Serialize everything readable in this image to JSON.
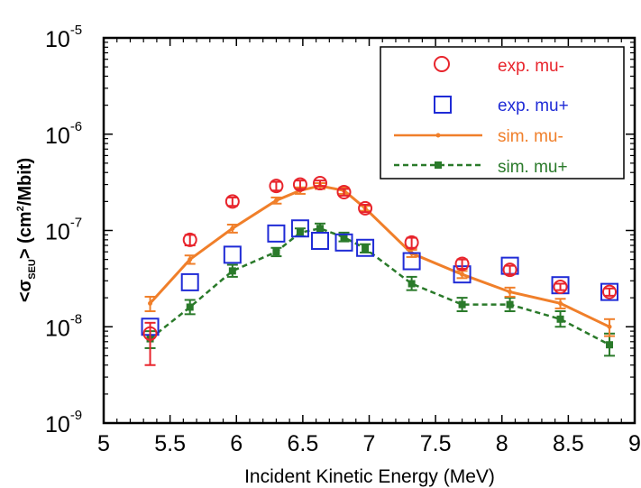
{
  "chart_data": {
    "type": "scatter",
    "xlabel": "Incident Kinetic Energy (MeV)",
    "ylabel": {
      "prefix": "<σ",
      "subscript": "SEU",
      "suffix": "> (cm",
      "superscript": "2",
      "end": "/Mbit)"
    },
    "xlim": [
      5,
      9
    ],
    "ylim": [
      1e-09,
      1e-05
    ],
    "yscale": "log",
    "x_ticks": [
      "5",
      "5.5",
      "6",
      "6.5",
      "7",
      "7.5",
      "8",
      "8.5",
      "9"
    ],
    "y_ticks": [
      {
        "base": "10",
        "exp": "-9"
      },
      {
        "base": "10",
        "exp": "-8"
      },
      {
        "base": "10",
        "exp": "-7"
      },
      {
        "base": "10",
        "exp": "-6"
      },
      {
        "base": "10",
        "exp": "-5"
      }
    ],
    "grid": false,
    "legend_position": "top-right",
    "series": [
      {
        "name": "exp. mu-",
        "style": "open-circle",
        "color": "#e8242c",
        "x": [
          5.35,
          5.65,
          5.97,
          6.3,
          6.48,
          6.63,
          6.81,
          6.97,
          7.32,
          7.7,
          8.06,
          8.44,
          8.81
        ],
        "y": [
          8.5e-09,
          8e-08,
          2e-07,
          2.9e-07,
          3e-07,
          3.1e-07,
          2.5e-07,
          1.7e-07,
          7.5e-08,
          4.5e-08,
          3.9e-08,
          2.6e-08,
          2.3e-08
        ],
        "err_low": [
          4e-09,
          7e-08,
          1.8e-07,
          2.6e-07,
          2.7e-07,
          2.9e-07,
          2.3e-07,
          1.55e-07,
          6.6e-08,
          4e-08,
          3.5e-08,
          2.4e-08,
          2.1e-08
        ],
        "err_high": [
          1.1e-08,
          9e-08,
          2.2e-07,
          3.2e-07,
          3.3e-07,
          3.3e-07,
          2.7e-07,
          1.85e-07,
          8.4e-08,
          5e-08,
          4.3e-08,
          2.8e-08,
          2.5e-08
        ]
      },
      {
        "name": "exp. mu+",
        "style": "open-square",
        "color": "#1f2bd6",
        "x": [
          5.35,
          5.65,
          5.97,
          6.3,
          6.48,
          6.63,
          6.81,
          6.97,
          7.32,
          7.7,
          8.06,
          8.44,
          8.81
        ],
        "y": [
          1e-08,
          2.9e-08,
          5.6e-08,
          9.3e-08,
          1.05e-07,
          7.8e-08,
          7.5e-08,
          6.6e-08,
          4.8e-08,
          3.5e-08,
          4.3e-08,
          2.7e-08,
          2.3e-08
        ]
      },
      {
        "name": "sim. mu-",
        "style": "solid-line",
        "color": "#f07f2a",
        "x": [
          5.35,
          5.65,
          5.97,
          6.3,
          6.48,
          6.63,
          6.81,
          6.97,
          7.32,
          7.7,
          8.06,
          8.44,
          8.81
        ],
        "y": [
          1.75e-08,
          5e-08,
          1.05e-07,
          2.05e-07,
          2.6e-07,
          2.9e-07,
          2.6e-07,
          1.7e-07,
          5.8e-08,
          3.5e-08,
          2.3e-08,
          1.75e-08,
          1e-08
        ],
        "err_low": [
          1.45e-08,
          4.5e-08,
          9.5e-08,
          1.9e-07,
          2.4e-07,
          2.7e-07,
          2.4e-07,
          1.6e-07,
          5.3e-08,
          3.2e-08,
          2.05e-08,
          1.55e-08,
          8e-09
        ],
        "err_high": [
          2.05e-08,
          5.5e-08,
          1.15e-07,
          2.2e-07,
          2.8e-07,
          3.1e-07,
          2.8e-07,
          1.8e-07,
          6.3e-08,
          3.8e-08,
          2.55e-08,
          1.95e-08,
          1.2e-08
        ]
      },
      {
        "name": "sim. mu+",
        "style": "dashed-line-square",
        "color": "#2a7a2a",
        "x": [
          5.35,
          5.65,
          5.97,
          6.3,
          6.48,
          6.63,
          6.81,
          6.97,
          7.32,
          7.7,
          8.06,
          8.44,
          8.81
        ],
        "y": [
          7.5e-09,
          1.6e-08,
          3.8e-08,
          6e-08,
          9.5e-08,
          1.05e-07,
          8.5e-08,
          6.5e-08,
          2.8e-08,
          1.7e-08,
          1.7e-08,
          1.2e-08,
          6.5e-09
        ],
        "err_low": [
          6e-09,
          1.35e-08,
          3.3e-08,
          5.4e-08,
          8.7e-08,
          9.5e-08,
          7.7e-08,
          5.9e-08,
          2.4e-08,
          1.45e-08,
          1.45e-08,
          1e-08,
          5e-09
        ],
        "err_high": [
          9e-09,
          1.9e-08,
          4.4e-08,
          6.6e-08,
          1.05e-07,
          1.18e-07,
          9.5e-08,
          7.2e-08,
          3.3e-08,
          2e-08,
          2e-08,
          1.45e-08,
          8.5e-09
        ]
      }
    ]
  }
}
